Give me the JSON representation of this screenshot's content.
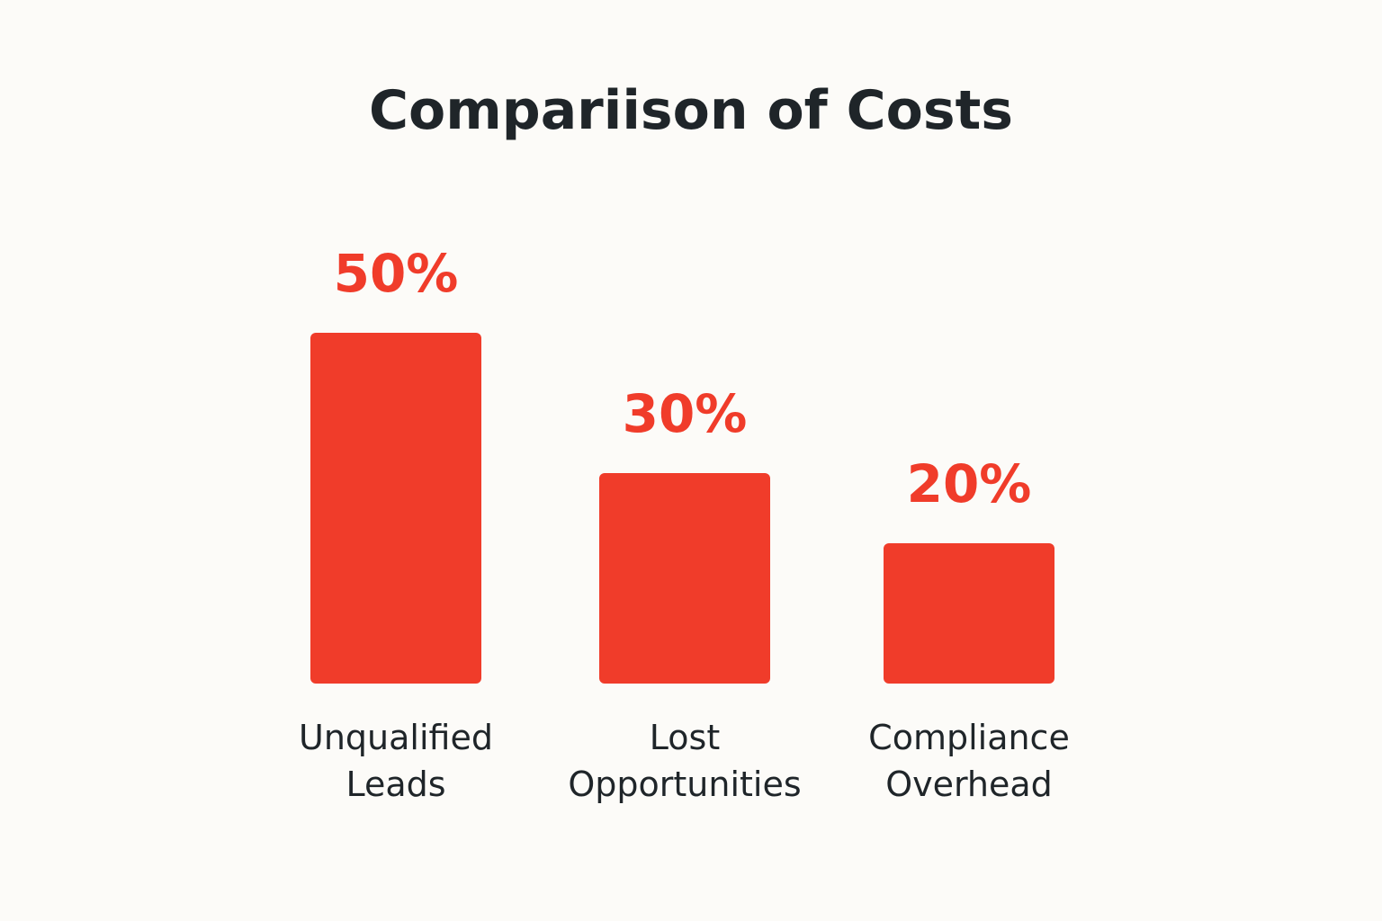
{
  "chart_data": {
    "type": "bar",
    "title": "Compariison of Costs",
    "categories": [
      "Unqualified Leads",
      "Lost Opportunities",
      "Compliance Overhead"
    ],
    "values": [
      50,
      30,
      20
    ],
    "value_labels": [
      "50%",
      "30%",
      "20%"
    ],
    "color": "#f03c2a"
  }
}
